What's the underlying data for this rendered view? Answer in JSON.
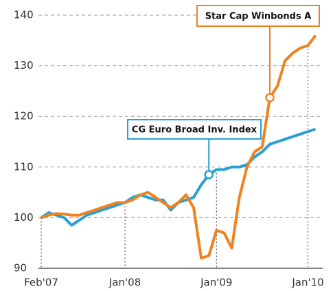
{
  "chart_data": {
    "type": "line",
    "x": [
      "2007-02",
      "2007-03",
      "2007-04",
      "2007-05",
      "2007-06",
      "2007-07",
      "2007-08",
      "2007-09",
      "2007-10",
      "2007-11",
      "2007-12",
      "2008-01",
      "2008-02",
      "2008-03",
      "2008-04",
      "2008-05",
      "2008-06",
      "2008-07",
      "2008-08",
      "2008-09",
      "2008-10",
      "2008-11",
      "2008-12",
      "2009-01",
      "2009-02",
      "2009-03",
      "2009-04",
      "2009-05",
      "2009-06",
      "2009-07",
      "2009-08",
      "2009-09",
      "2009-10",
      "2009-11",
      "2009-12",
      "2010-01",
      "2010-02"
    ],
    "series": [
      {
        "name": "CG Euro Broad Inv. Index",
        "color": "#2a9fd6",
        "values": [
          100,
          101,
          100.5,
          100,
          98.5,
          99.5,
          100.5,
          101,
          101.5,
          102,
          102.5,
          103,
          104,
          104.5,
          104,
          103.5,
          103.5,
          101.5,
          103,
          103.5,
          104,
          106.5,
          108.5,
          109.5,
          109.5,
          110,
          110,
          110.5,
          112,
          113,
          114.5,
          115,
          115.5,
          116,
          116.5,
          117,
          117.5
        ]
      },
      {
        "name": "Star Cap Winbonds A",
        "color": "#f0821e",
        "values": [
          100,
          100.5,
          100.8,
          100.7,
          100.5,
          100.5,
          101,
          101.5,
          102,
          102.5,
          103,
          103,
          103.5,
          104.5,
          105,
          104,
          103,
          102,
          103,
          104.5,
          102,
          92,
          92.5,
          97.5,
          97,
          94,
          104,
          110,
          113,
          114,
          123.7,
          126,
          131,
          132.5,
          133.5,
          134,
          136
        ]
      }
    ],
    "xlim": [
      "2007-02",
      "2010-02"
    ],
    "xticks": [
      {
        "value": "2007-02",
        "label": "Feb'07"
      },
      {
        "value": "2008-01",
        "label": "Jan'08"
      },
      {
        "value": "2009-01",
        "label": "Jan'09"
      },
      {
        "value": "2010-01",
        "label": "Jan'10"
      }
    ],
    "ylim": [
      90,
      140
    ],
    "yticks": [
      90,
      100,
      110,
      120,
      130,
      140
    ],
    "grid": true
  }
}
